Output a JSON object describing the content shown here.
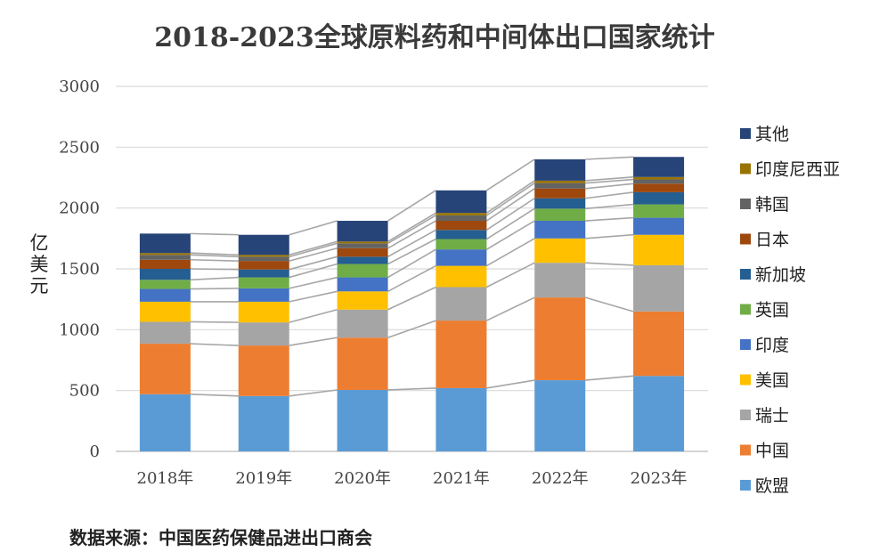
{
  "chart_data": {
    "type": "bar",
    "stacked": true,
    "title": "2018-2023全球原料药和中间体出口国家统计",
    "ylabel": "亿美元",
    "xlabel": "",
    "ylim": [
      0,
      3000
    ],
    "yticks": [
      0,
      500,
      1000,
      1500,
      2000,
      2500,
      3000
    ],
    "grid": true,
    "legend_position": "right",
    "connector_lines": true,
    "categories": [
      "2018年",
      "2019年",
      "2020年",
      "2021年",
      "2022年",
      "2023年"
    ],
    "series": [
      {
        "name": "欧盟",
        "color": "#5B9BD5",
        "values": [
          470,
          455,
          505,
          520,
          585,
          620
        ]
      },
      {
        "name": "中国",
        "color": "#ED7D31",
        "values": [
          415,
          415,
          430,
          555,
          680,
          530
        ]
      },
      {
        "name": "瑞士",
        "color": "#A5A5A5",
        "values": [
          180,
          190,
          230,
          275,
          285,
          380
        ]
      },
      {
        "name": "美国",
        "color": "#FFC000",
        "values": [
          165,
          170,
          150,
          175,
          200,
          250
        ]
      },
      {
        "name": "印度",
        "color": "#4472C4",
        "values": [
          105,
          110,
          115,
          135,
          145,
          140
        ]
      },
      {
        "name": "英国",
        "color": "#70AD47",
        "values": [
          75,
          90,
          110,
          85,
          100,
          110
        ]
      },
      {
        "name": "新加坡",
        "color": "#255E91",
        "values": [
          90,
          65,
          60,
          75,
          85,
          100
        ]
      },
      {
        "name": "日本",
        "color": "#9E480E",
        "values": [
          75,
          70,
          70,
          75,
          80,
          70
        ]
      },
      {
        "name": "韩国",
        "color": "#636363",
        "values": [
          40,
          35,
          40,
          45,
          45,
          35
        ]
      },
      {
        "name": "印度尼西亚",
        "color": "#997300",
        "values": [
          15,
          15,
          15,
          20,
          20,
          20
        ]
      },
      {
        "name": "其他",
        "color": "#264478",
        "values": [
          160,
          165,
          170,
          185,
          175,
          165
        ]
      }
    ]
  },
  "source": "数据来源：中国医药保健品进出口商会"
}
